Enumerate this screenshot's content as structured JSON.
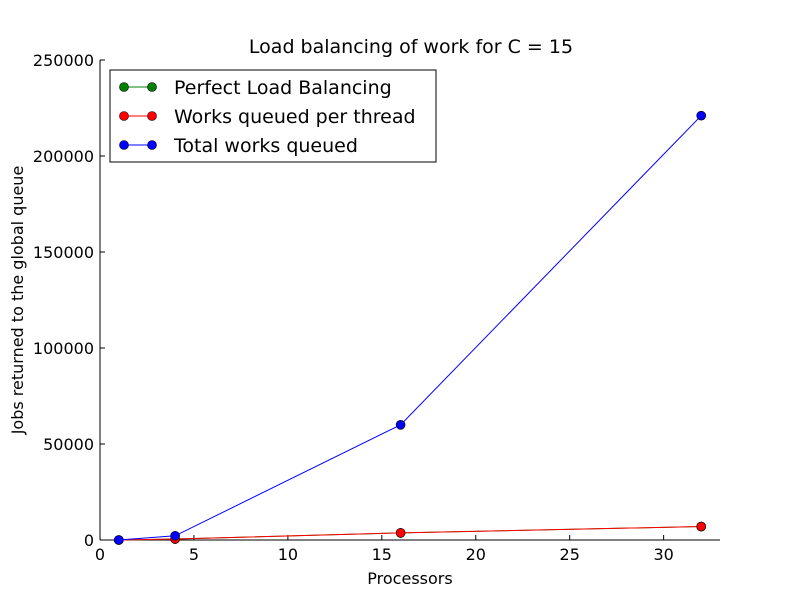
{
  "chart_data": {
    "type": "line",
    "title": "Load balancing of work for C = 15",
    "xlabel": "Processors",
    "ylabel": "Jobs returned to the global queue",
    "xlim": [
      0,
      33
    ],
    "ylim": [
      0,
      250000
    ],
    "xticks": [
      0,
      5,
      10,
      15,
      20,
      25,
      30
    ],
    "yticks": [
      0,
      50000,
      100000,
      150000,
      200000,
      250000
    ],
    "grid": false,
    "legend_position": "top-left",
    "x": [
      1,
      4,
      16,
      32
    ],
    "series": [
      {
        "name": "Perfect Load Balancing",
        "color": "#008000",
        "marker": "circle",
        "values": [
          0,
          500,
          3700,
          7000
        ]
      },
      {
        "name": "Works queued per thread",
        "color": "#ff0000",
        "marker": "circle",
        "values": [
          0,
          500,
          3700,
          7000
        ]
      },
      {
        "name": "Total works queued",
        "color": "#0000ff",
        "marker": "circle",
        "values": [
          0,
          2200,
          60000,
          221000
        ]
      }
    ]
  }
}
